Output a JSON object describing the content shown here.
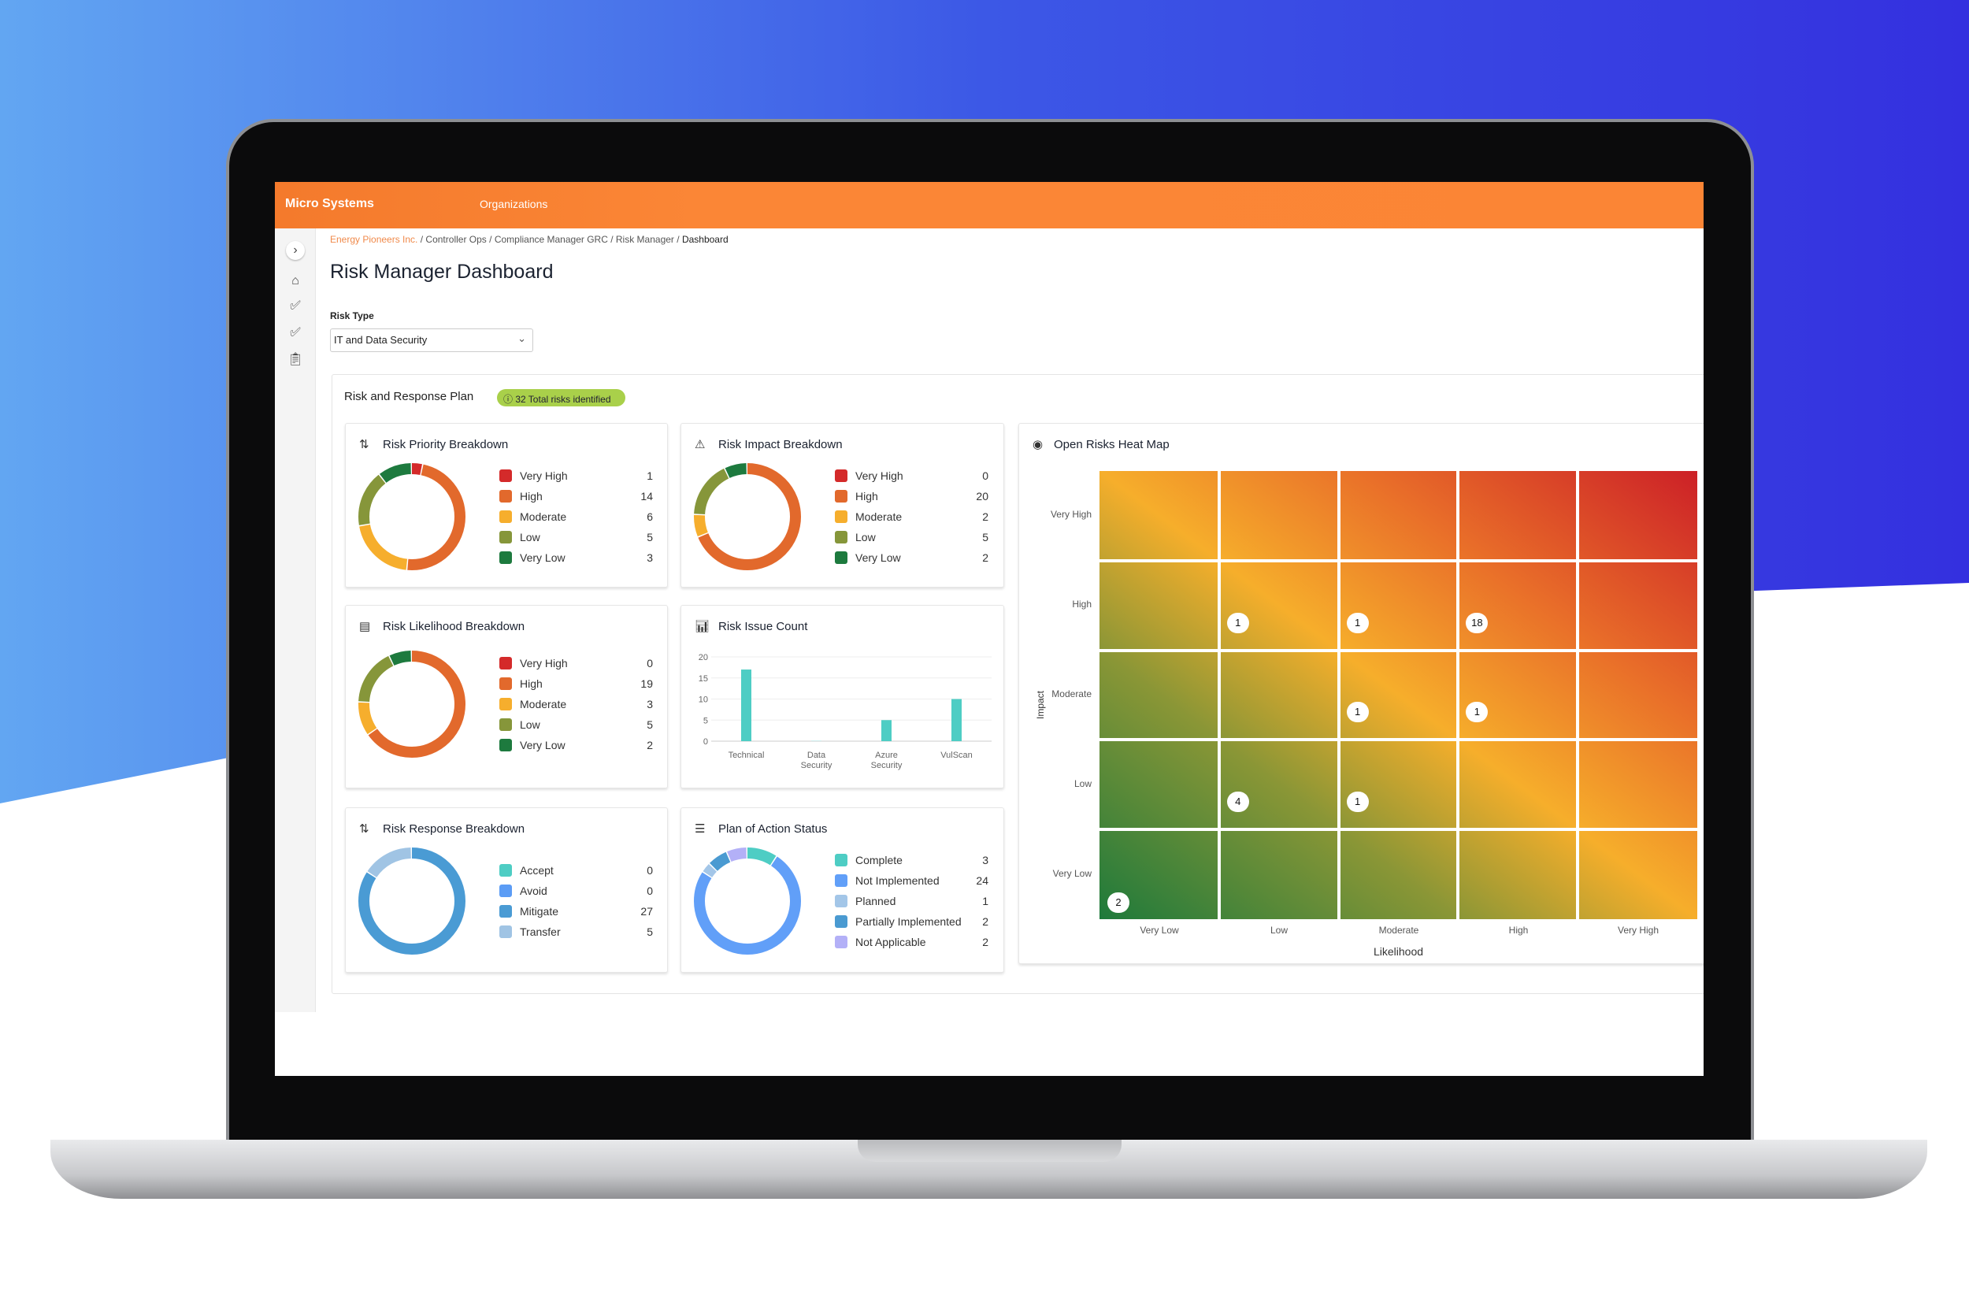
{
  "header": {
    "brand": "Micro Systems",
    "nav": "Organizations"
  },
  "breadcrumb": [
    "Energy Pioneers Inc.",
    "Controller Ops",
    "Compliance Manager GRC",
    "Risk Manager",
    "Dashboard"
  ],
  "page_title": "Risk Manager Dashboard",
  "filter": {
    "label": "Risk Type",
    "value": "IT and Data Security"
  },
  "panel": {
    "title": "Risk and Response Plan",
    "badge": "32 Total risks identified"
  },
  "priority": {
    "title": "Risk Priority Breakdown",
    "items": [
      {
        "label": "Very High",
        "value": 1,
        "color": "#d42a2a"
      },
      {
        "label": "High",
        "value": 14,
        "color": "#e2692c"
      },
      {
        "label": "Moderate",
        "value": 6,
        "color": "#f6ae2d"
      },
      {
        "label": "Low",
        "value": 5,
        "color": "#86963a"
      },
      {
        "label": "Very Low",
        "value": 3,
        "color": "#1d7a3e"
      }
    ]
  },
  "impact": {
    "title": "Risk Impact Breakdown",
    "items": [
      {
        "label": "Very High",
        "value": 0,
        "color": "#d42a2a"
      },
      {
        "label": "High",
        "value": 20,
        "color": "#e2692c"
      },
      {
        "label": "Moderate",
        "value": 2,
        "color": "#f6ae2d"
      },
      {
        "label": "Low",
        "value": 5,
        "color": "#86963a"
      },
      {
        "label": "Very Low",
        "value": 2,
        "color": "#1d7a3e"
      }
    ]
  },
  "likelihood": {
    "title": "Risk Likelihood Breakdown",
    "items": [
      {
        "label": "Very High",
        "value": 0,
        "color": "#d42a2a"
      },
      {
        "label": "High",
        "value": 19,
        "color": "#e2692c"
      },
      {
        "label": "Moderate",
        "value": 3,
        "color": "#f6ae2d"
      },
      {
        "label": "Low",
        "value": 5,
        "color": "#86963a"
      },
      {
        "label": "Very Low",
        "value": 2,
        "color": "#1d7a3e"
      }
    ]
  },
  "response": {
    "title": "Risk Response Breakdown",
    "items": [
      {
        "label": "Accept",
        "value": 0,
        "color": "#4ecdc4"
      },
      {
        "label": "Avoid",
        "value": 0,
        "color": "#5b9cf5"
      },
      {
        "label": "Mitigate",
        "value": 27,
        "color": "#4a9bd4"
      },
      {
        "label": "Transfer",
        "value": 5,
        "color": "#a0c4e4"
      }
    ]
  },
  "plan": {
    "title": "Plan of Action Status",
    "items": [
      {
        "label": "Complete",
        "value": 3,
        "color": "#4ecdc4"
      },
      {
        "label": "Not Implemented",
        "value": 24,
        "color": "#619ff8"
      },
      {
        "label": "Planned",
        "value": 1,
        "color": "#a3c6e8"
      },
      {
        "label": "Partially Implemented",
        "value": 2,
        "color": "#4a9ad1"
      },
      {
        "label": "Not Applicable",
        "value": 2,
        "color": "#b3b0f7"
      }
    ]
  },
  "chart_data": {
    "type": "bar",
    "title": "Risk Issue Count",
    "categories": [
      "Technical",
      "Data Security",
      "Azure Security",
      "VulScan"
    ],
    "values": [
      17,
      0,
      5,
      10
    ],
    "ylim": [
      0,
      20
    ],
    "yticks": [
      0,
      5,
      10,
      15,
      20
    ],
    "color": "#4ecdc4"
  },
  "heatmap": {
    "title": "Open Risks Heat Map",
    "xlabel": "Likelihood",
    "ylabel": "Impact",
    "levels": [
      "Very Low",
      "Low",
      "Moderate",
      "High",
      "Very High"
    ],
    "counts_by_impact_top_down": [
      [
        null,
        null,
        null,
        null,
        null
      ],
      [
        null,
        1,
        1,
        18,
        null
      ],
      [
        null,
        null,
        1,
        1,
        null
      ],
      [
        null,
        4,
        1,
        null,
        null
      ],
      [
        2,
        null,
        null,
        null,
        null
      ]
    ]
  }
}
